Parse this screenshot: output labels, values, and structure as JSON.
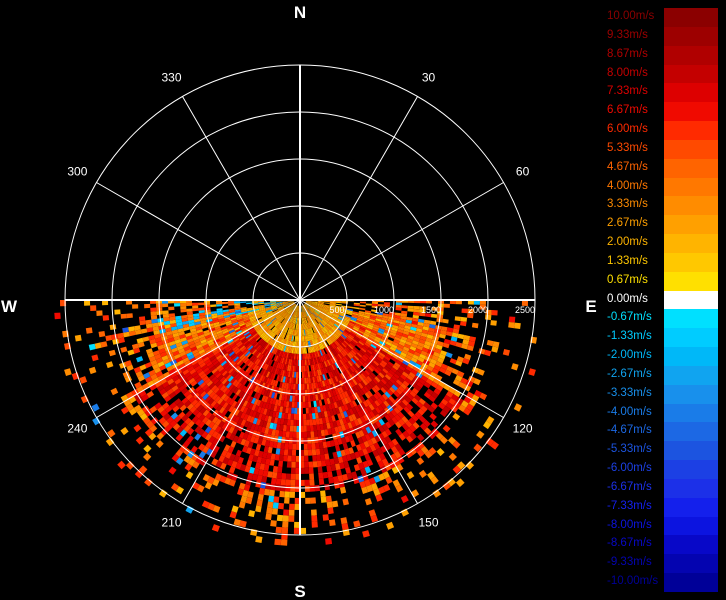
{
  "chart_data": {
    "type": "polar-radar-ppi",
    "quantity": "radial velocity",
    "compass": {
      "north": "N",
      "east": "E",
      "south": "S",
      "west": "W"
    },
    "azimuth_ticks": [
      30,
      60,
      120,
      150,
      210,
      240,
      300,
      330
    ],
    "range_ticks": [
      500,
      1000,
      1500,
      2000,
      2500
    ],
    "range_max": 2500,
    "sector_start_deg": 90,
    "sector_end_deg": 270,
    "legend": {
      "labels": [
        "10.00m/s",
        "9.33m/s",
        "8.67m/s",
        "8.00m/s",
        "7.33m/s",
        "6.67m/s",
        "6.00m/s",
        "5.33m/s",
        "4.67m/s",
        "4.00m/s",
        "3.33m/s",
        "2.67m/s",
        "2.00m/s",
        "1.33m/s",
        "0.67m/s",
        "0.00m/s",
        "-0.67m/s",
        "-1.33m/s",
        "-2.00m/s",
        "-2.67m/s",
        "-3.33m/s",
        "-4.00m/s",
        "-4.67m/s",
        "-5.33m/s",
        "-6.00m/s",
        "-6.67m/s",
        "-7.33m/s",
        "-8.00m/s",
        "-8.67m/s",
        "-9.33m/s",
        "-10.00m/s"
      ],
      "colors": [
        "#8b0000",
        "#9d0000",
        "#b00000",
        "#c40000",
        "#dd0000",
        "#f00a00",
        "#ff2a00",
        "#ff4a00",
        "#ff6400",
        "#ff7800",
        "#ff8c00",
        "#ffa000",
        "#ffb400",
        "#ffc800",
        "#ffe000",
        "#ffffff",
        "#00e0ff",
        "#00ccff",
        "#00b8f8",
        "#10a4f0",
        "#1890ec",
        "#1a7ce8",
        "#1c68e4",
        "#1c54e0",
        "#1c40e4",
        "#1c30e8",
        "#1420ec",
        "#0c14e0",
        "#0808c8",
        "#0404b0",
        "#000098"
      ]
    },
    "velocity_field": {
      "sector": "southern half (azimuth 90-270)",
      "dominant_values_mps": [
        3.33,
        5.33,
        7.33
      ],
      "peak_region_mps": 8.0,
      "negative_patches_mps": [
        -0.67,
        -2.0,
        -4.0
      ]
    }
  }
}
